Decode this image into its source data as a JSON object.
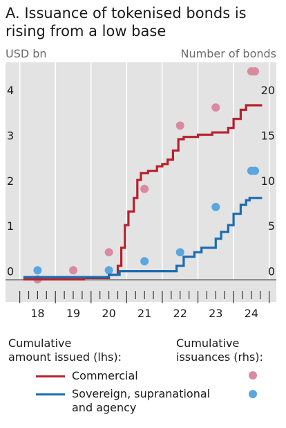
{
  "title_line1": "A. Issuance of tokenised bonds is",
  "title_line2": "rising from a low base",
  "legend": {
    "lhs_heading_line1": "Cumulative",
    "lhs_heading_line2": "amount issued (lhs):",
    "rhs_heading_line1": "Cumulative",
    "rhs_heading_line2": "issuances (rhs):",
    "commercial": "Commercial",
    "sovereign_line1": "Sovereign, supranational",
    "sovereign_line2": "and agency"
  },
  "colors": {
    "commercial_line": "#b7212b",
    "sovereign_line": "#1a6bb0",
    "commercial_dot": "#d98aa1",
    "sovereign_dot": "#5aa7e0",
    "plot_bg": "#e3e3e3",
    "grid": "#ffffff"
  },
  "chart_data": {
    "type": "line",
    "x_ticks": [
      "18",
      "19",
      "20",
      "21",
      "22",
      "23",
      "24"
    ],
    "xlim": [
      2017.6,
      2025.2
    ],
    "left_axis": {
      "label": "USD bn",
      "ticks": [
        "0",
        "1",
        "2",
        "3",
        "4"
      ],
      "ylim": [
        -0.5,
        4.8
      ]
    },
    "right_axis": {
      "label": "Number of bonds",
      "ticks": [
        "0",
        "5",
        "10",
        "15",
        "20"
      ],
      "ylim": [
        -2.5,
        24
      ]
    },
    "series": [
      {
        "name": "Commercial",
        "axis": "lhs",
        "points": [
          [
            2018.1,
            0
          ],
          [
            2019.8,
            0
          ],
          [
            2019.8,
            0.03
          ],
          [
            2020.5,
            0.03
          ],
          [
            2020.5,
            0.1
          ],
          [
            2020.75,
            0.1
          ],
          [
            2020.75,
            0.3
          ],
          [
            2020.85,
            0.3
          ],
          [
            2020.85,
            0.7
          ],
          [
            2020.95,
            0.7
          ],
          [
            2020.95,
            1.2
          ],
          [
            2021.05,
            1.2
          ],
          [
            2021.05,
            1.5
          ],
          [
            2021.2,
            1.5
          ],
          [
            2021.2,
            1.8
          ],
          [
            2021.3,
            1.8
          ],
          [
            2021.3,
            2.2
          ],
          [
            2021.4,
            2.2
          ],
          [
            2021.4,
            2.35
          ],
          [
            2021.6,
            2.35
          ],
          [
            2021.6,
            2.4
          ],
          [
            2021.85,
            2.4
          ],
          [
            2021.85,
            2.5
          ],
          [
            2022.0,
            2.5
          ],
          [
            2022.0,
            2.55
          ],
          [
            2022.15,
            2.55
          ],
          [
            2022.15,
            2.65
          ],
          [
            2022.3,
            2.65
          ],
          [
            2022.3,
            2.85
          ],
          [
            2022.45,
            2.85
          ],
          [
            2022.45,
            3.1
          ],
          [
            2022.6,
            3.1
          ],
          [
            2022.6,
            3.15
          ],
          [
            2023.0,
            3.15
          ],
          [
            2023.0,
            3.2
          ],
          [
            2023.4,
            3.2
          ],
          [
            2023.4,
            3.25
          ],
          [
            2023.85,
            3.25
          ],
          [
            2023.85,
            3.35
          ],
          [
            2024.0,
            3.35
          ],
          [
            2024.0,
            3.55
          ],
          [
            2024.2,
            3.55
          ],
          [
            2024.2,
            3.75
          ],
          [
            2024.35,
            3.75
          ],
          [
            2024.35,
            3.85
          ],
          [
            2024.8,
            3.85
          ]
        ]
      },
      {
        "name": "Sovereign, supranational and agency",
        "axis": "lhs",
        "points": [
          [
            2018.1,
            0.05
          ],
          [
            2020.5,
            0.05
          ],
          [
            2020.5,
            0.1
          ],
          [
            2020.8,
            0.1
          ],
          [
            2020.8,
            0.18
          ],
          [
            2022.4,
            0.18
          ],
          [
            2022.4,
            0.3
          ],
          [
            2022.6,
            0.3
          ],
          [
            2022.6,
            0.5
          ],
          [
            2022.9,
            0.5
          ],
          [
            2022.9,
            0.6
          ],
          [
            2023.1,
            0.6
          ],
          [
            2023.1,
            0.7
          ],
          [
            2023.5,
            0.7
          ],
          [
            2023.5,
            0.9
          ],
          [
            2023.65,
            0.9
          ],
          [
            2023.65,
            1.05
          ],
          [
            2023.85,
            1.05
          ],
          [
            2023.85,
            1.2
          ],
          [
            2024.0,
            1.2
          ],
          [
            2024.0,
            1.45
          ],
          [
            2024.2,
            1.45
          ],
          [
            2024.2,
            1.65
          ],
          [
            2024.35,
            1.65
          ],
          [
            2024.35,
            1.75
          ],
          [
            2024.45,
            1.75
          ],
          [
            2024.45,
            1.8
          ],
          [
            2024.8,
            1.8
          ]
        ]
      }
    ],
    "dots": [
      {
        "series": "Commercial",
        "axis": "rhs",
        "points": [
          [
            2018.5,
            0
          ],
          [
            2019.5,
            1
          ],
          [
            2020.5,
            3
          ],
          [
            2021.5,
            10
          ],
          [
            2022.5,
            17
          ],
          [
            2023.5,
            19
          ],
          [
            2024.5,
            23
          ],
          [
            2024.6,
            23
          ]
        ]
      },
      {
        "series": "Sovereign, supranational and agency",
        "axis": "rhs",
        "points": [
          [
            2018.5,
            1
          ],
          [
            2020.5,
            1
          ],
          [
            2021.5,
            2
          ],
          [
            2022.5,
            3
          ],
          [
            2023.5,
            8
          ],
          [
            2024.5,
            12
          ],
          [
            2024.6,
            12
          ]
        ]
      }
    ]
  }
}
